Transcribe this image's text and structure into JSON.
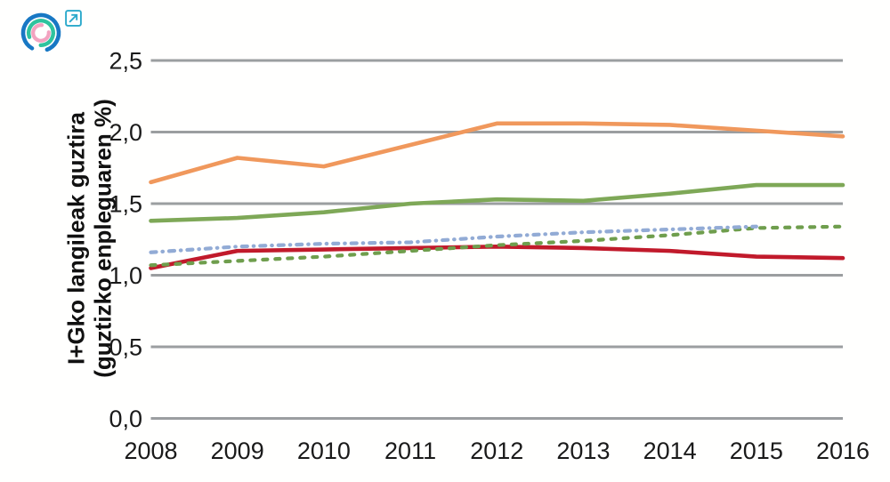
{
  "header": {
    "logo_name": "concentric-arcs-logo",
    "external_link_name": "open-external-link"
  },
  "chart_data": {
    "type": "line",
    "title": "",
    "xlabel": "",
    "ylabel": "I+Gko langileak guztira (guztizko enpleguaren %)",
    "ylabel_lines": [
      "I+Gko langileak guztira",
      "(guztizko enpleguaren %)"
    ],
    "categories": [
      "2008",
      "2009",
      "2010",
      "2011",
      "2012",
      "2013",
      "2014",
      "2015",
      "2016"
    ],
    "ytick_labels": [
      "0,0",
      "0,5",
      "1,0",
      "1,5",
      "2,0",
      "2,5"
    ],
    "ytick_values": [
      0,
      0.5,
      1.0,
      1.5,
      2.0,
      2.5
    ],
    "ylim": [
      0,
      2.5
    ],
    "grid": "horizontal",
    "legend_position": "none",
    "gridline_color": "#9B9EA0",
    "tick_text_color": "#1A1A1A",
    "series": [
      {
        "name": "orange-solid",
        "color": "#F0985C",
        "line_style": "solid",
        "values": [
          1.65,
          1.82,
          1.76,
          1.91,
          2.06,
          2.06,
          2.05,
          2.01,
          1.97
        ]
      },
      {
        "name": "green-solid",
        "color": "#7EA857",
        "line_style": "solid",
        "values": [
          1.38,
          1.4,
          1.44,
          1.5,
          1.53,
          1.52,
          1.57,
          1.63,
          1.63
        ]
      },
      {
        "name": "blue-dash-dot",
        "color": "#92ABD5",
        "line_style": "dashdot",
        "values": [
          1.16,
          1.2,
          1.22,
          1.23,
          1.27,
          1.3,
          1.32,
          1.34,
          null
        ]
      },
      {
        "name": "green-dashed",
        "color": "#6F9E4D",
        "line_style": "dashed",
        "values": [
          1.07,
          1.1,
          1.13,
          1.17,
          1.21,
          1.24,
          1.28,
          1.33,
          1.34
        ]
      },
      {
        "name": "red-solid",
        "color": "#C11A2B",
        "line_style": "solid",
        "values": [
          1.05,
          1.17,
          1.18,
          1.19,
          1.2,
          1.19,
          1.17,
          1.13,
          1.12
        ]
      }
    ]
  }
}
